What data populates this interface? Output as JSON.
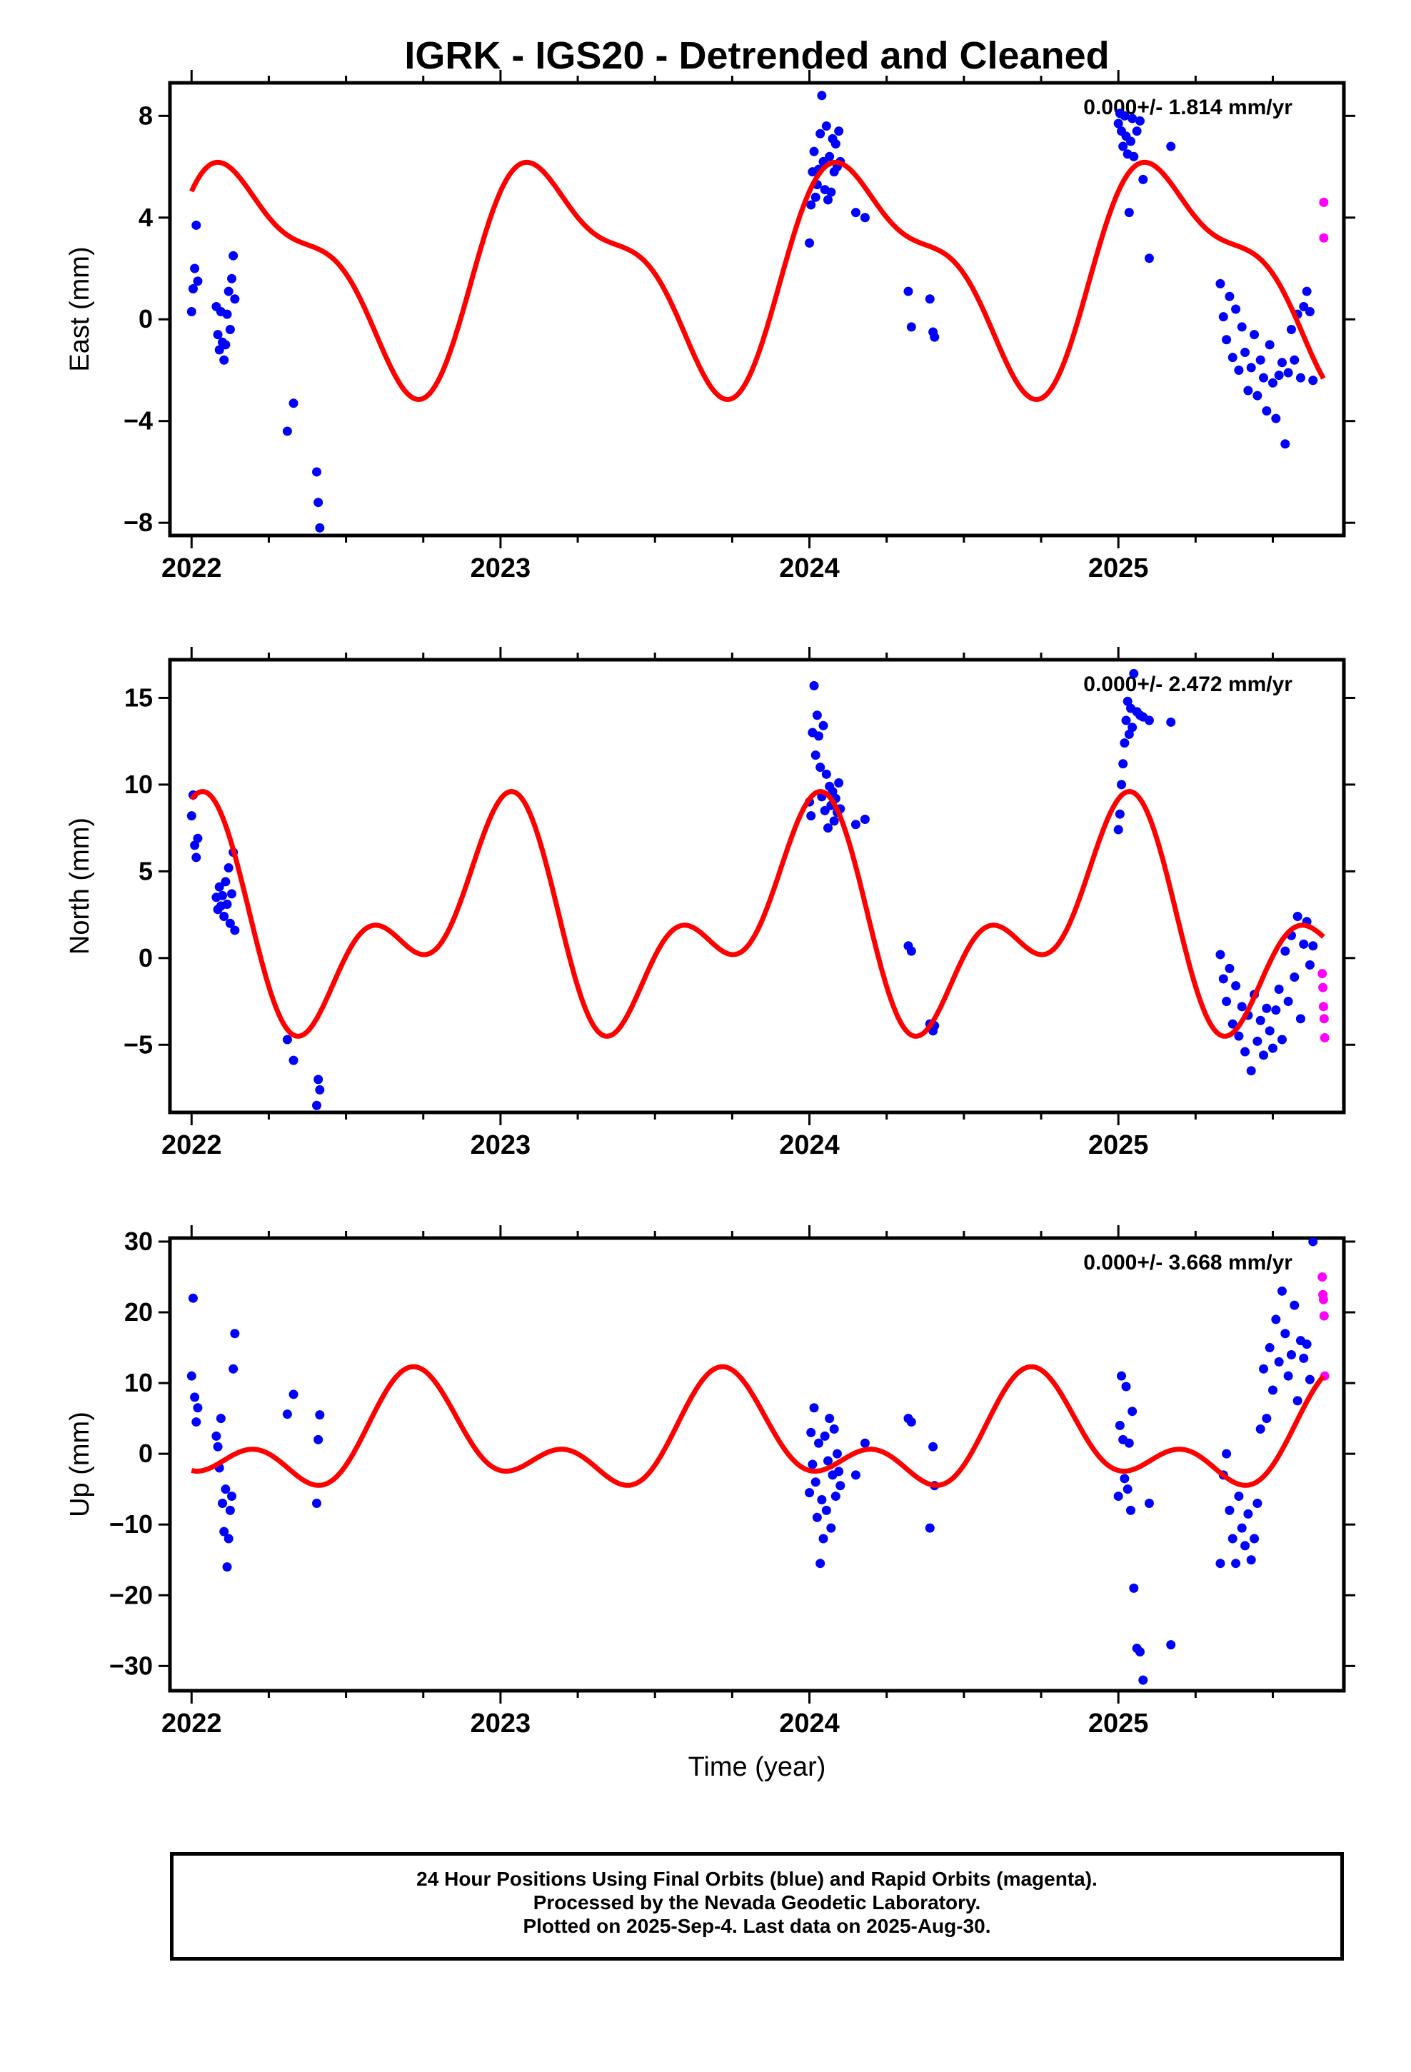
{
  "title": "IGRK - IGS20 - Detrended and Cleaned",
  "xlabel": "Time (year)",
  "footer": {
    "line1": "24 Hour Positions Using Final Orbits (blue) and Rapid Orbits (magenta).",
    "line2": "Processed by the Nevada Geodetic Laboratory.",
    "line3": "Plotted on 2025-Sep-4. Last data on 2025-Aug-30."
  },
  "colors": {
    "final": "#0000ff",
    "rapid": "#ff00ff",
    "model": "#ff0000",
    "frame": "#000000"
  },
  "chart_data": [
    {
      "type": "scatter",
      "id": "east",
      "ylabel": "East (mm)",
      "rate": "0.000+/- 1.814 mm/yr",
      "xlim": [
        2021.93,
        2025.73
      ],
      "ylim": [
        -8.5,
        9.3
      ],
      "yticks": [
        -8,
        -4,
        0,
        4,
        8
      ],
      "xticks": [
        2022,
        2023,
        2024,
        2025
      ],
      "model": {
        "mean": 1.93,
        "c1": 1.62,
        "s1": 3.56,
        "c2": 1.48,
        "s2": 0.37
      },
      "final": {
        "x": [
          2022.0,
          2022.005,
          2022.01,
          2022.015,
          2022.02,
          2022.08,
          2022.085,
          2022.09,
          2022.095,
          2022.1,
          2022.105,
          2022.11,
          2022.115,
          2022.12,
          2022.125,
          2022.13,
          2022.135,
          2022.14,
          2022.31,
          2022.33,
          2022.405,
          2022.41,
          2022.415,
          2024.0,
          2024.005,
          2024.01,
          2024.015,
          2024.02,
          2024.025,
          2024.03,
          2024.035,
          2024.04,
          2024.045,
          2024.05,
          2024.055,
          2024.06,
          2024.065,
          2024.07,
          2024.075,
          2024.08,
          2024.085,
          2024.09,
          2024.095,
          2024.1,
          2024.15,
          2024.18,
          2024.32,
          2024.33,
          2024.39,
          2024.4,
          2024.405,
          2025.0,
          2025.005,
          2025.01,
          2025.015,
          2025.02,
          2025.025,
          2025.03,
          2025.035,
          2025.04,
          2025.045,
          2025.05,
          2025.06,
          2025.07,
          2025.08,
          2025.1,
          2025.17,
          2025.33,
          2025.34,
          2025.35,
          2025.36,
          2025.37,
          2025.38,
          2025.39,
          2025.4,
          2025.41,
          2025.42,
          2025.43,
          2025.44,
          2025.45,
          2025.46,
          2025.47,
          2025.48,
          2025.49,
          2025.5,
          2025.51,
          2025.52,
          2025.53,
          2025.54,
          2025.55,
          2025.56,
          2025.57,
          2025.58,
          2025.59,
          2025.6,
          2025.61,
          2025.62,
          2025.63
        ],
        "y": [
          0.3,
          1.2,
          2.0,
          3.7,
          1.5,
          0.5,
          -0.6,
          -1.2,
          0.3,
          -0.9,
          -1.6,
          -1.0,
          0.2,
          1.1,
          -0.4,
          1.6,
          2.5,
          0.8,
          -4.4,
          -3.3,
          -6.0,
          -7.2,
          -8.2,
          3.0,
          4.5,
          5.8,
          6.6,
          4.8,
          5.3,
          5.9,
          7.3,
          8.8,
          6.2,
          5.1,
          7.6,
          4.7,
          6.4,
          5.0,
          7.1,
          5.8,
          6.9,
          6.0,
          7.4,
          6.2,
          4.2,
          4.0,
          1.1,
          -0.3,
          0.8,
          -0.5,
          -0.7,
          7.7,
          8.1,
          7.4,
          6.8,
          8.0,
          7.2,
          6.5,
          4.2,
          7.0,
          7.9,
          6.4,
          7.4,
          7.8,
          5.5,
          2.4,
          6.8,
          1.4,
          0.1,
          -0.8,
          0.9,
          -1.5,
          0.4,
          -2.0,
          -0.3,
          -1.3,
          -2.8,
          -1.9,
          -0.6,
          -3.0,
          -1.6,
          -2.3,
          -3.6,
          -1.0,
          -2.5,
          -3.9,
          -2.2,
          -1.7,
          -4.9,
          -2.1,
          -0.4,
          -1.6,
          0.2,
          -2.3,
          0.5,
          1.1,
          0.3,
          -2.4
        ]
      },
      "rapid": {
        "x": [
          2025.665,
          2025.665
        ],
        "y": [
          4.6,
          3.2
        ]
      }
    },
    {
      "type": "scatter",
      "id": "north",
      "ylabel": "North (mm)",
      "rate": "0.000+/- 2.472 mm/yr",
      "xlim": [
        2021.93,
        2025.73
      ],
      "ylim": [
        -8.9,
        17.2
      ],
      "yticks": [
        -5,
        0,
        5,
        10,
        15
      ],
      "xticks": [
        2022,
        2023,
        2024,
        2025
      ],
      "model": {
        "mean": 1.96,
        "c1": 4.53,
        "s1": -0.92,
        "c2": 2.68,
        "s2": 2.34
      },
      "final": {
        "x": [
          2022.0,
          2022.005,
          2022.01,
          2022.015,
          2022.02,
          2022.08,
          2022.085,
          2022.09,
          2022.095,
          2022.1,
          2022.105,
          2022.11,
          2022.115,
          2022.12,
          2022.125,
          2022.13,
          2022.135,
          2022.14,
          2022.31,
          2022.33,
          2022.405,
          2022.41,
          2022.415,
          2024.0,
          2024.005,
          2024.01,
          2024.015,
          2024.02,
          2024.025,
          2024.03,
          2024.035,
          2024.04,
          2024.045,
          2024.05,
          2024.055,
          2024.06,
          2024.065,
          2024.07,
          2024.075,
          2024.08,
          2024.085,
          2024.09,
          2024.095,
          2024.1,
          2024.15,
          2024.18,
          2024.32,
          2024.33,
          2024.39,
          2024.4,
          2024.405,
          2025.0,
          2025.005,
          2025.01,
          2025.015,
          2025.02,
          2025.025,
          2025.03,
          2025.035,
          2025.04,
          2025.045,
          2025.05,
          2025.06,
          2025.07,
          2025.08,
          2025.1,
          2025.17,
          2025.33,
          2025.34,
          2025.35,
          2025.36,
          2025.37,
          2025.38,
          2025.39,
          2025.4,
          2025.41,
          2025.42,
          2025.43,
          2025.44,
          2025.45,
          2025.46,
          2025.47,
          2025.48,
          2025.49,
          2025.5,
          2025.51,
          2025.52,
          2025.53,
          2025.54,
          2025.55,
          2025.56,
          2025.57,
          2025.58,
          2025.59,
          2025.6,
          2025.61,
          2025.62,
          2025.63
        ],
        "y": [
          8.2,
          9.4,
          6.5,
          5.8,
          6.9,
          3.5,
          2.8,
          4.1,
          3.0,
          3.6,
          2.4,
          4.4,
          3.1,
          5.2,
          2.0,
          3.7,
          6.1,
          1.6,
          -4.7,
          -5.9,
          -8.5,
          -7.0,
          -7.6,
          9.0,
          8.2,
          13.0,
          15.7,
          11.7,
          14.0,
          12.8,
          11.0,
          9.3,
          13.4,
          8.5,
          10.6,
          7.5,
          9.9,
          8.8,
          9.6,
          7.9,
          9.2,
          8.4,
          10.1,
          8.6,
          7.7,
          8.0,
          0.7,
          0.4,
          -3.8,
          -4.2,
          -3.9,
          7.4,
          8.3,
          10.0,
          11.2,
          12.4,
          13.7,
          14.8,
          12.9,
          14.4,
          13.3,
          16.4,
          14.2,
          14.0,
          13.9,
          13.7,
          13.6,
          0.2,
          -1.2,
          -2.5,
          -0.6,
          -3.8,
          -1.6,
          -4.5,
          -2.8,
          -5.4,
          -3.3,
          -6.5,
          -2.1,
          -4.8,
          -3.6,
          -5.6,
          -2.9,
          -4.2,
          -5.2,
          -3.0,
          -1.8,
          -4.7,
          0.4,
          -2.5,
          1.3,
          -1.1,
          2.4,
          -3.5,
          0.8,
          2.1,
          -0.4,
          0.7
        ]
      },
      "rapid": {
        "x": [
          2025.66,
          2025.662,
          2025.664,
          2025.666,
          2025.668
        ],
        "y": [
          -0.9,
          -1.7,
          -2.8,
          -3.5,
          -4.6
        ]
      }
    },
    {
      "type": "scatter",
      "id": "up",
      "ylabel": "Up (mm)",
      "rate": "0.000+/- 3.668 mm/yr",
      "xlim": [
        2021.93,
        2025.73
      ],
      "ylim": [
        -33.5,
        30.5
      ],
      "yticks": [
        -30,
        -20,
        -10,
        0,
        10,
        20,
        30
      ],
      "xticks": [
        2022,
        2023,
        2024,
        2025
      ],
      "model": {
        "mean": 1.97,
        "c1": -0.38,
        "s1": -5.93,
        "c2": -3.95,
        "s2": 2.09
      },
      "final": {
        "x": [
          2022.0,
          2022.005,
          2022.01,
          2022.015,
          2022.02,
          2022.08,
          2022.085,
          2022.09,
          2022.095,
          2022.1,
          2022.105,
          2022.11,
          2022.115,
          2022.12,
          2022.125,
          2022.13,
          2022.135,
          2022.14,
          2022.31,
          2022.33,
          2022.405,
          2022.41,
          2022.415,
          2024.0,
          2024.005,
          2024.01,
          2024.015,
          2024.02,
          2024.025,
          2024.03,
          2024.035,
          2024.04,
          2024.045,
          2024.05,
          2024.055,
          2024.06,
          2024.065,
          2024.07,
          2024.075,
          2024.08,
          2024.085,
          2024.09,
          2024.095,
          2024.1,
          2024.15,
          2024.18,
          2024.32,
          2024.33,
          2024.39,
          2024.4,
          2024.405,
          2025.0,
          2025.005,
          2025.01,
          2025.015,
          2025.02,
          2025.025,
          2025.03,
          2025.035,
          2025.04,
          2025.045,
          2025.05,
          2025.06,
          2025.07,
          2025.08,
          2025.1,
          2025.17,
          2025.33,
          2025.34,
          2025.35,
          2025.36,
          2025.37,
          2025.38,
          2025.39,
          2025.4,
          2025.41,
          2025.42,
          2025.43,
          2025.44,
          2025.45,
          2025.46,
          2025.47,
          2025.48,
          2025.49,
          2025.5,
          2025.51,
          2025.52,
          2025.53,
          2025.54,
          2025.55,
          2025.56,
          2025.57,
          2025.58,
          2025.59,
          2025.6,
          2025.61,
          2025.62,
          2025.63
        ],
        "y": [
          11.0,
          22.0,
          8.0,
          4.5,
          6.5,
          2.5,
          1.0,
          -2.0,
          5.0,
          -7.0,
          -11.0,
          -5.0,
          -16.0,
          -12.0,
          -8.0,
          -6.0,
          12.0,
          17.0,
          5.6,
          8.4,
          -7.0,
          2.0,
          5.5,
          -5.5,
          3.0,
          -1.5,
          6.5,
          -4.0,
          -9.0,
          1.5,
          -15.5,
          -6.5,
          -12.0,
          2.5,
          -8.0,
          -1.0,
          5.0,
          -10.5,
          -3.0,
          3.5,
          -6.0,
          0.0,
          -2.5,
          -4.5,
          -3.0,
          1.5,
          5.0,
          4.5,
          -10.5,
          1.0,
          -4.5,
          -6.0,
          4.0,
          11.0,
          2.0,
          -3.5,
          9.5,
          -5.0,
          1.5,
          -8.0,
          6.0,
          -19.0,
          -27.5,
          -28.0,
          -32.0,
          -7.0,
          -27.0,
          -15.5,
          -3.0,
          0.0,
          -8.0,
          -12.0,
          -15.5,
          -6.0,
          -10.5,
          -13.0,
          -8.5,
          -15.0,
          -12.0,
          -7.0,
          3.5,
          12.0,
          5.0,
          15.0,
          9.0,
          19.0,
          13.0,
          23.0,
          17.0,
          11.0,
          14.0,
          21.0,
          7.5,
          16.0,
          13.5,
          15.5,
          10.5,
          30.0
        ]
      },
      "rapid": {
        "x": [
          2025.66,
          2025.662,
          2025.664,
          2025.666,
          2025.668
        ],
        "y": [
          25.0,
          22.5,
          21.8,
          19.5,
          11.0
        ]
      }
    }
  ]
}
